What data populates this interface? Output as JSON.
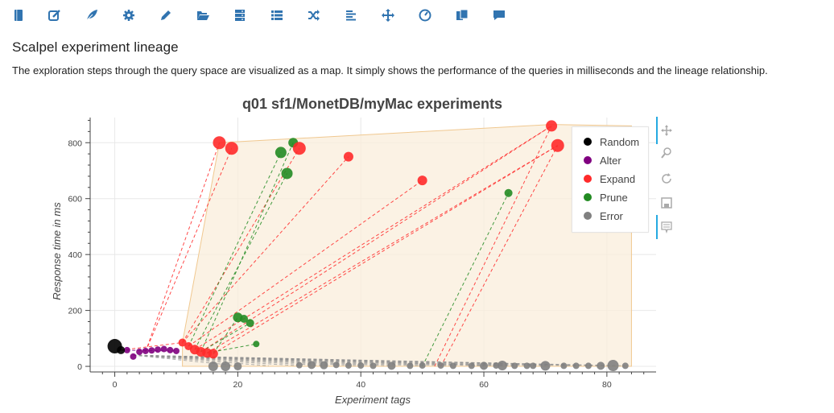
{
  "toolbar": {
    "accent": "#3174b0",
    "icons": [
      "book-icon",
      "edit-icon",
      "leaf-icon",
      "gear-icon",
      "pencil-icon",
      "folder-open-icon",
      "server-icon",
      "list-icon",
      "shuffle-icon",
      "align-left-icon",
      "move-icon",
      "dashboard-icon",
      "copy-icon",
      "comment-icon"
    ]
  },
  "page": {
    "title": "Scalpel experiment lineage",
    "description": "The exploration steps through the query space are visualized as a map. It simply shows the performance of the queries in milliseconds and the lineage relationship."
  },
  "chart_data": {
    "type": "scatter",
    "title": "q01 sf1/MonetDB/myMac experiments",
    "xlabel": "Experiment tags",
    "ylabel": "Response time in ms",
    "xlim": [
      -4,
      88
    ],
    "ylim": [
      -20,
      890
    ],
    "xticks": [
      "0",
      "20",
      "40",
      "60",
      "80"
    ],
    "yticks": [
      "0",
      "200",
      "400",
      "600",
      "800"
    ],
    "grid": true,
    "legend_position": "top-right",
    "hull_color": "#f9eedb",
    "series": [
      {
        "name": "Random",
        "color": "#000000",
        "points": [
          [
            0,
            72,
            9
          ],
          [
            1,
            58,
            5
          ]
        ]
      },
      {
        "name": "Alter",
        "color": "#800080",
        "points": [
          [
            2,
            58,
            4
          ],
          [
            3,
            35,
            4
          ],
          [
            4,
            52,
            4
          ],
          [
            5,
            55,
            4
          ],
          [
            6,
            57,
            4
          ],
          [
            7,
            60,
            4
          ],
          [
            8,
            62,
            4
          ],
          [
            9,
            58,
            4
          ],
          [
            10,
            55,
            4
          ]
        ]
      },
      {
        "name": "Expand",
        "color": "#ff2a2a",
        "points": [
          [
            11,
            85,
            5
          ],
          [
            12,
            72,
            5
          ],
          [
            13,
            60,
            6
          ],
          [
            14,
            52,
            6
          ],
          [
            15,
            48,
            6
          ],
          [
            16,
            45,
            6
          ],
          [
            17,
            800,
            8
          ],
          [
            19,
            780,
            8
          ],
          [
            30,
            780,
            8
          ],
          [
            38,
            750,
            6
          ],
          [
            50,
            665,
            6
          ],
          [
            71,
            860,
            7
          ],
          [
            72,
            790,
            8
          ]
        ]
      },
      {
        "name": "Prune",
        "color": "#228b22",
        "points": [
          [
            20,
            175,
            6
          ],
          [
            21,
            170,
            5
          ],
          [
            22,
            155,
            5
          ],
          [
            23,
            80,
            4
          ],
          [
            27,
            765,
            7
          ],
          [
            28,
            690,
            7
          ],
          [
            29,
            800,
            6
          ],
          [
            64,
            620,
            5
          ]
        ]
      },
      {
        "name": "Error",
        "color": "#808080",
        "points": [
          [
            16,
            0,
            6
          ],
          [
            18,
            0,
            6
          ],
          [
            20,
            0,
            5
          ],
          [
            30,
            4,
            4
          ],
          [
            32,
            5,
            5
          ],
          [
            34,
            4,
            5
          ],
          [
            36,
            5,
            4
          ],
          [
            38,
            3,
            4
          ],
          [
            40,
            3,
            4
          ],
          [
            42,
            2,
            4
          ],
          [
            45,
            2,
            5
          ],
          [
            48,
            2,
            4
          ],
          [
            50,
            3,
            4
          ],
          [
            53,
            3,
            4
          ],
          [
            55,
            2,
            4
          ],
          [
            58,
            2,
            4
          ],
          [
            60,
            2,
            5
          ],
          [
            62,
            3,
            4
          ],
          [
            63,
            3,
            6
          ],
          [
            65,
            2,
            4
          ],
          [
            67,
            2,
            4
          ],
          [
            68,
            2,
            4
          ],
          [
            70,
            2,
            6
          ],
          [
            73,
            2,
            4
          ],
          [
            75,
            2,
            4
          ],
          [
            77,
            2,
            4
          ],
          [
            79,
            2,
            5
          ],
          [
            81,
            3,
            7
          ],
          [
            83,
            2,
            4
          ]
        ]
      }
    ]
  }
}
